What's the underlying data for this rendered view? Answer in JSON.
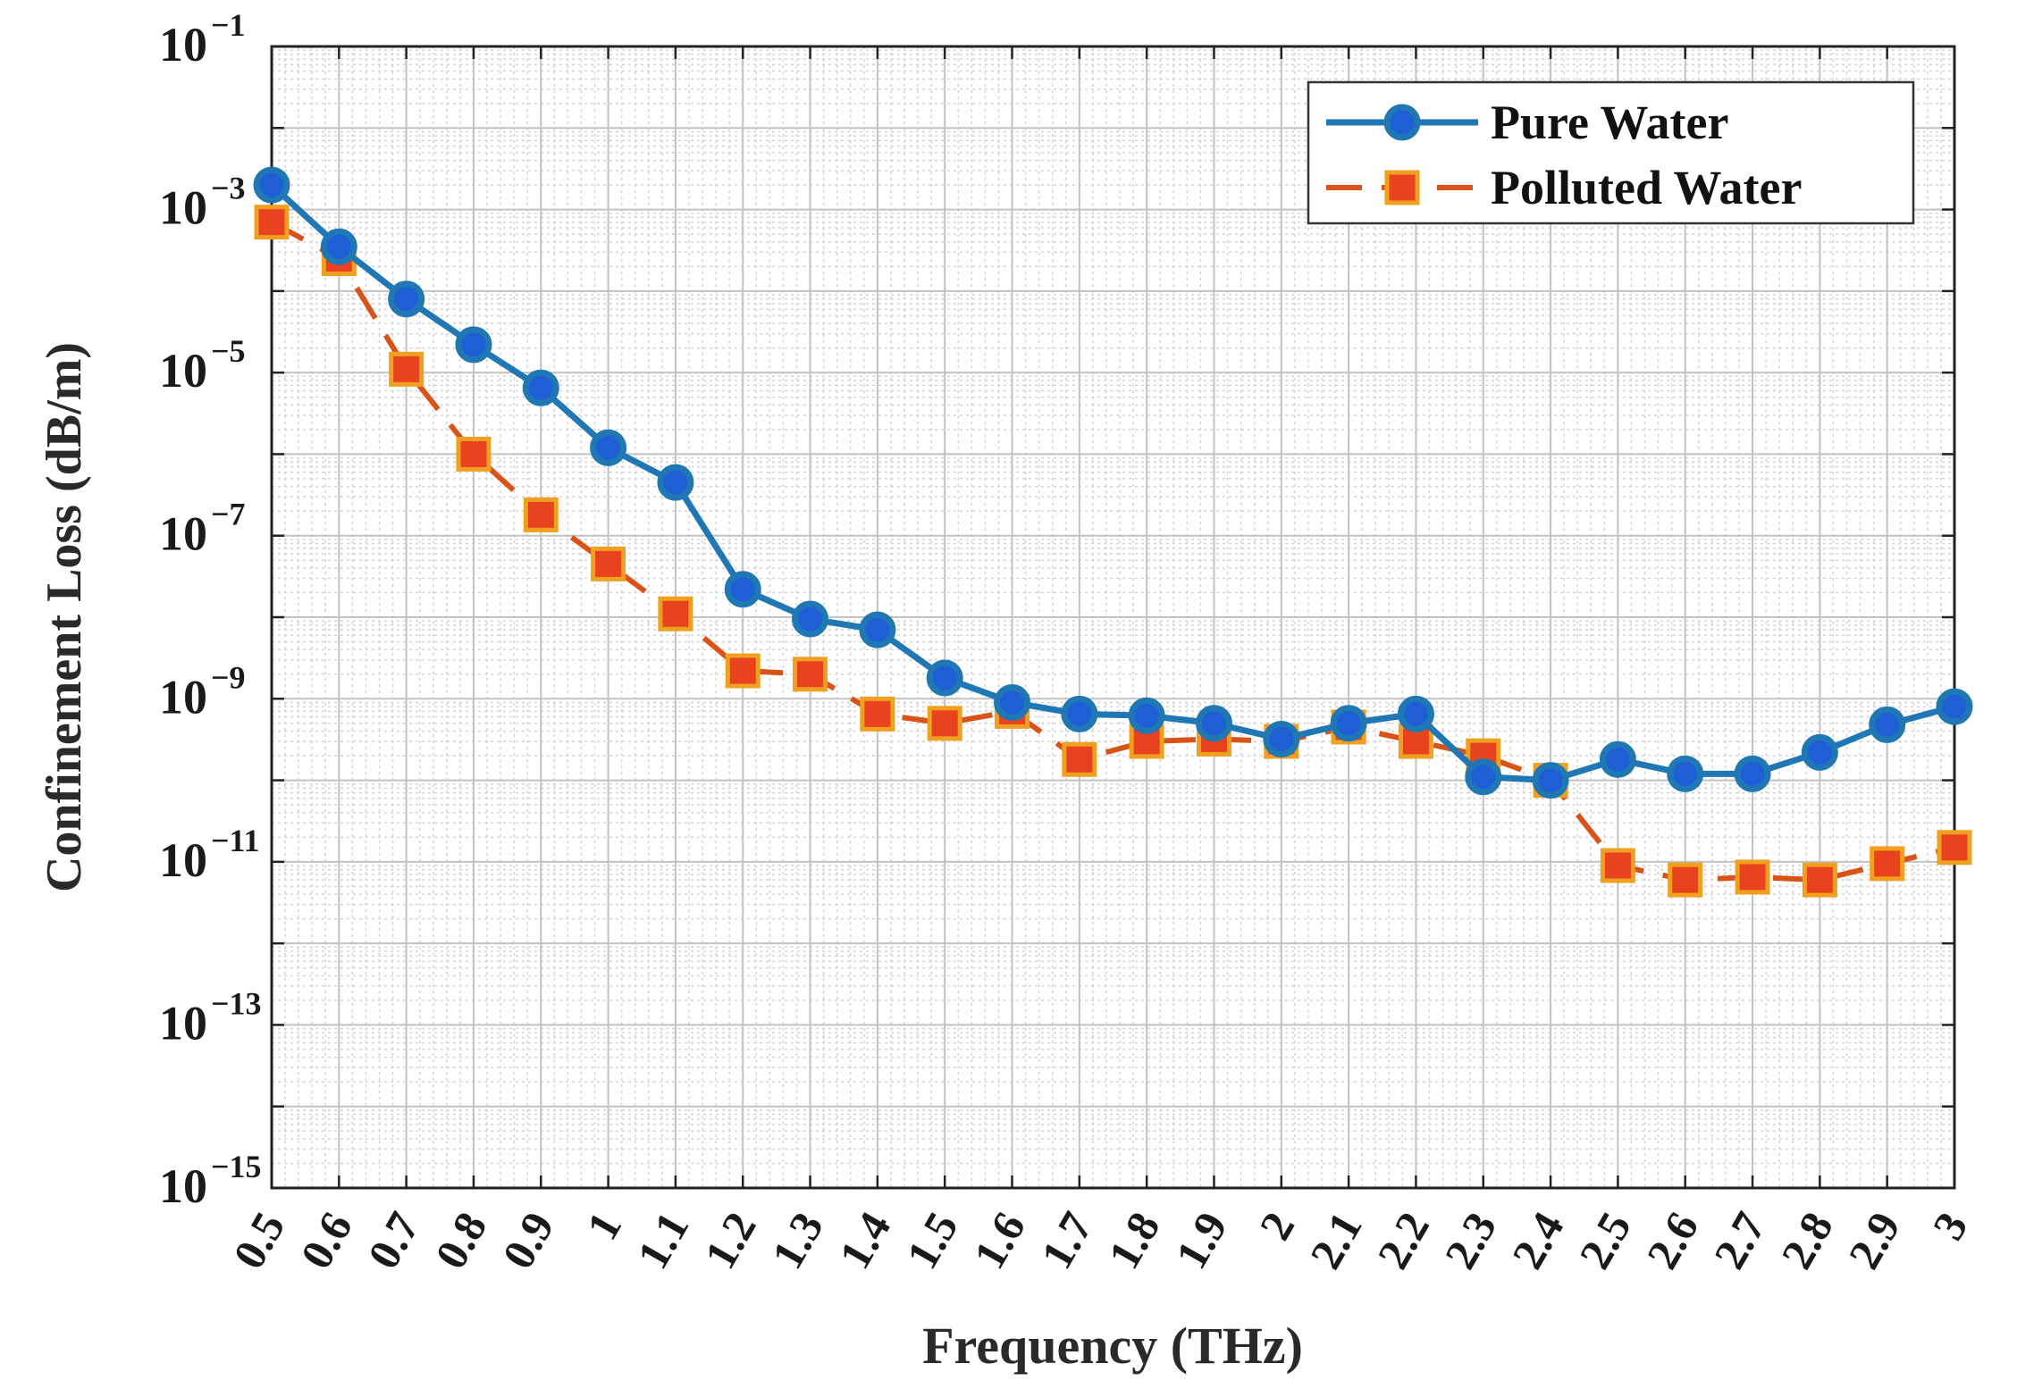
{
  "chart_data": {
    "type": "line",
    "y_scale": "log",
    "title": "",
    "xlabel": "Frequency (THz)",
    "ylabel": "Confinement Loss (dB/m)",
    "xlim": [
      0.5,
      3.0
    ],
    "ylim_exponent": [
      -15,
      -1
    ],
    "grid": true,
    "legend_position": "top-right",
    "x": [
      0.5,
      0.6,
      0.7,
      0.8,
      0.9,
      1.0,
      1.1,
      1.2,
      1.3,
      1.4,
      1.5,
      1.6,
      1.7,
      1.8,
      1.9,
      2.0,
      2.1,
      2.2,
      2.3,
      2.4,
      2.5,
      2.6,
      2.7,
      2.8,
      2.9,
      3.0
    ],
    "x_tick_labels": [
      "0.5",
      "0.6",
      "0.7",
      "0.8",
      "0.9",
      "1",
      "1.1",
      "1.2",
      "1.3",
      "1.4",
      "1.5",
      "1.6",
      "1.7",
      "1.8",
      "1.9",
      "2",
      "2.1",
      "2.2",
      "2.3",
      "2.4",
      "2.5",
      "2.6",
      "2.7",
      "2.8",
      "2.9",
      "3"
    ],
    "y_tick_exponents": [
      -15,
      -13,
      -11,
      -9,
      -7,
      -5,
      -3,
      -1
    ],
    "y_tick_base": "10",
    "series": [
      {
        "name": "Pure Water",
        "color": "#1f77b4",
        "line_style": "solid",
        "marker": "circle",
        "values": [
          0.002,
          0.00035,
          8e-05,
          2.2e-05,
          6.5e-06,
          1.2e-06,
          4.5e-07,
          2.2e-08,
          9.5e-09,
          7e-09,
          1.8e-09,
          9e-10,
          6.5e-10,
          6.2e-10,
          5e-10,
          3.2e-10,
          5e-10,
          6.5e-10,
          1.1e-10,
          1e-10,
          1.8e-10,
          1.2e-10,
          1.2e-10,
          2.2e-10,
          4.8e-10,
          8e-10
        ]
      },
      {
        "name": "Polluted Water",
        "color": "#d95319",
        "marker_color": "#e8431e",
        "line_style": "dashed",
        "marker": "square",
        "values": [
          0.0007,
          0.00025,
          1.1e-05,
          1e-06,
          1.8e-07,
          4.5e-08,
          1.1e-08,
          2.2e-09,
          2e-09,
          6.5e-10,
          5e-10,
          7e-10,
          1.8e-10,
          3e-10,
          3.2e-10,
          3e-10,
          4.5e-10,
          3e-10,
          2e-10,
          1e-10,
          9e-12,
          6e-12,
          6.5e-12,
          6e-12,
          9.5e-12,
          1.5e-11
        ]
      }
    ]
  }
}
